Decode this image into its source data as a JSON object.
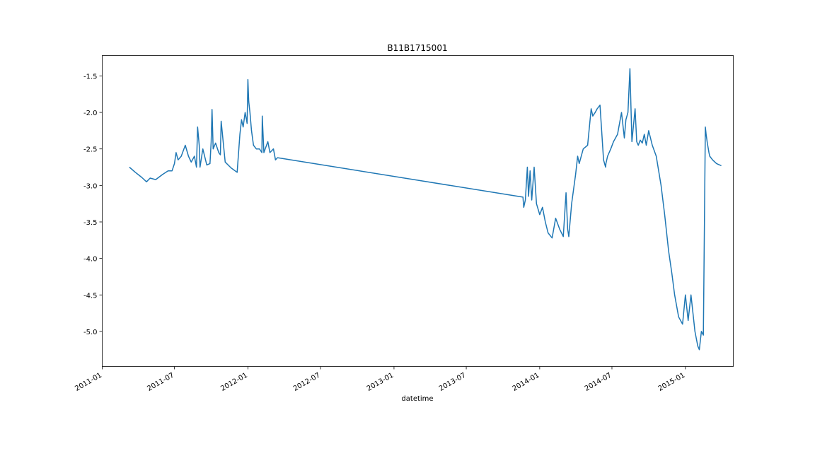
{
  "chart_data": {
    "type": "line",
    "title": "B11B1715001",
    "xlabel": "datetime",
    "ylabel": "",
    "x_tick_labels": [
      "2011-01",
      "2011-07",
      "2012-01",
      "2012-07",
      "2013-01",
      "2013-07",
      "2014-01",
      "2014-07",
      "2015-01"
    ],
    "y_tick_labels": [
      "-1.5",
      "-2.0",
      "-2.5",
      "-3.0",
      "-3.5",
      "-4.0",
      "-4.5",
      "-5.0"
    ],
    "y_ticks": [
      -1.5,
      -2.0,
      -2.5,
      -3.0,
      -3.5,
      -4.0,
      -4.5,
      -5.0
    ],
    "ylim": [
      -5.48,
      -1.22
    ],
    "xlim": [
      "2011-01-01",
      "2015-05-01"
    ],
    "grid": false,
    "series": [
      {
        "color": "#1f77b4",
        "x": [
          "2011-03-10",
          "2011-03-25",
          "2011-04-10",
          "2011-04-22",
          "2011-05-01",
          "2011-05-15",
          "2011-06-01",
          "2011-06-15",
          "2011-06-25",
          "2011-07-01",
          "2011-07-05",
          "2011-07-10",
          "2011-07-18",
          "2011-07-28",
          "2011-08-05",
          "2011-08-12",
          "2011-08-20",
          "2011-08-25",
          "2011-08-28",
          "2011-09-01",
          "2011-09-03",
          "2011-09-10",
          "2011-09-20",
          "2011-09-28",
          "2011-10-01",
          "2011-10-03",
          "2011-10-06",
          "2011-10-12",
          "2011-10-20",
          "2011-10-24",
          "2011-10-26",
          "2011-11-05",
          "2011-11-20",
          "2011-12-05",
          "2011-12-12",
          "2011-12-16",
          "2011-12-20",
          "2011-12-25",
          "2011-12-30",
          "2012-01-01",
          "2012-01-03",
          "2012-01-06",
          "2012-01-10",
          "2012-01-15",
          "2012-01-22",
          "2012-01-30",
          "2012-02-05",
          "2012-02-06",
          "2012-02-10",
          "2012-02-20",
          "2012-02-25",
          "2012-03-05",
          "2012-03-10",
          "2012-03-15",
          "2013-11-20",
          "2013-11-22",
          "2013-11-26",
          "2013-12-01",
          "2013-12-04",
          "2013-12-08",
          "2013-12-12",
          "2013-12-18",
          "2013-12-24",
          "2014-01-01",
          "2014-01-08",
          "2014-01-15",
          "2014-01-22",
          "2014-02-01",
          "2014-02-10",
          "2014-02-20",
          "2014-03-01",
          "2014-03-08",
          "2014-03-12",
          "2014-03-15",
          "2014-03-22",
          "2014-04-01",
          "2014-04-06",
          "2014-04-10",
          "2014-04-20",
          "2014-05-01",
          "2014-05-10",
          "2014-05-14",
          "2014-05-20",
          "2014-05-25",
          "2014-06-01",
          "2014-06-10",
          "2014-06-15",
          "2014-06-16",
          "2014-06-20",
          "2014-06-28",
          "2014-07-05",
          "2014-07-15",
          "2014-07-25",
          "2014-08-01",
          "2014-08-05",
          "2014-08-10",
          "2014-08-15",
          "2014-08-20",
          "2014-08-28",
          "2014-09-01",
          "2014-09-05",
          "2014-09-10",
          "2014-09-15",
          "2014-09-20",
          "2014-09-25",
          "2014-10-01",
          "2014-10-10",
          "2014-10-20",
          "2014-11-01",
          "2014-11-10",
          "2014-11-20",
          "2014-11-28",
          "2014-12-05",
          "2014-12-15",
          "2014-12-25",
          "2015-01-01",
          "2015-01-08",
          "2015-01-15",
          "2015-01-20",
          "2015-01-25",
          "2015-02-01",
          "2015-02-05",
          "2015-02-10",
          "2015-02-15",
          "2015-02-20",
          "2015-02-22",
          "2015-02-25",
          "2015-03-01",
          "2015-03-03",
          "2015-03-10",
          "2015-03-20",
          "2015-04-01"
        ],
        "y": [
          -2.75,
          -2.82,
          -2.89,
          -2.95,
          -2.9,
          -2.92,
          -2.85,
          -2.8,
          -2.8,
          -2.7,
          -2.55,
          -2.65,
          -2.6,
          -2.45,
          -2.6,
          -2.68,
          -2.6,
          -2.75,
          -2.2,
          -2.45,
          -2.75,
          -2.5,
          -2.72,
          -2.7,
          -2.4,
          -1.96,
          -2.5,
          -2.42,
          -2.55,
          -2.58,
          -2.12,
          -2.68,
          -2.76,
          -2.82,
          -2.3,
          -2.1,
          -2.2,
          -2.0,
          -2.15,
          -1.55,
          -1.85,
          -2.0,
          -2.25,
          -2.45,
          -2.5,
          -2.5,
          -2.55,
          -2.05,
          -2.55,
          -2.4,
          -2.55,
          -2.5,
          -2.65,
          -2.62,
          -3.16,
          -3.3,
          -3.2,
          -2.75,
          -3.15,
          -2.8,
          -3.2,
          -2.75,
          -3.25,
          -3.4,
          -3.3,
          -3.5,
          -3.65,
          -3.72,
          -3.45,
          -3.6,
          -3.7,
          -3.1,
          -3.6,
          -3.7,
          -3.25,
          -2.85,
          -2.6,
          -2.7,
          -2.5,
          -2.45,
          -1.95,
          -2.05,
          -2.0,
          -1.95,
          -1.9,
          -2.65,
          -2.75,
          -2.7,
          -2.6,
          -2.5,
          -2.4,
          -2.3,
          -2.0,
          -2.35,
          -2.1,
          -2.0,
          -1.4,
          -2.4,
          -1.95,
          -2.4,
          -2.45,
          -2.38,
          -2.42,
          -2.3,
          -2.45,
          -2.25,
          -2.45,
          -2.6,
          -3.0,
          -3.4,
          -3.9,
          -4.2,
          -4.5,
          -4.8,
          -4.9,
          -4.5,
          -4.85,
          -4.5,
          -4.75,
          -5.0,
          -5.2,
          -5.25,
          -5.0,
          -5.05,
          -2.2,
          -2.3,
          -2.42,
          -2.55,
          -2.6,
          -2.65,
          -2.7,
          -2.73
        ]
      }
    ]
  }
}
